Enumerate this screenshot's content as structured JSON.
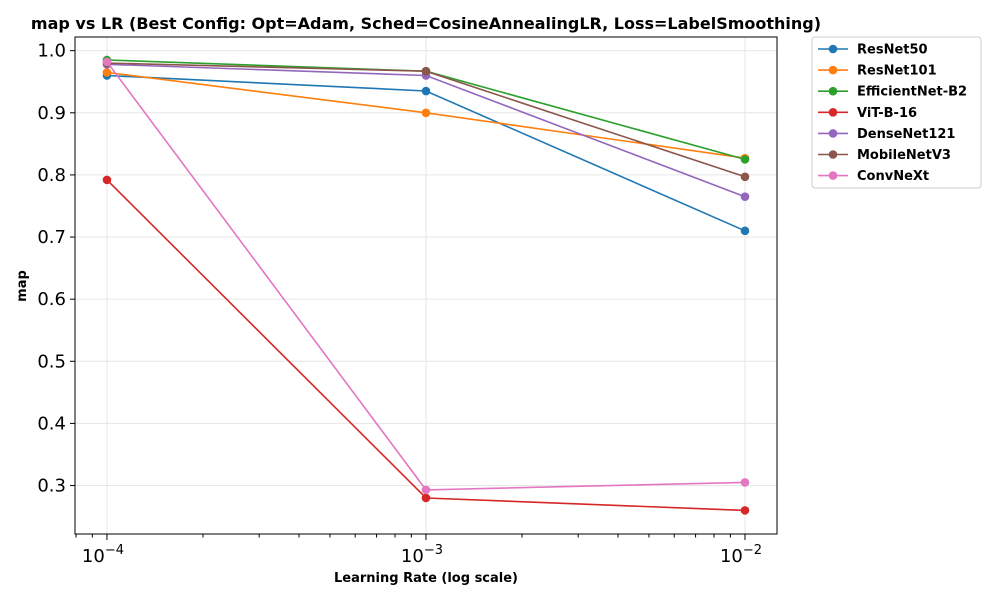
{
  "chart_data": {
    "type": "line",
    "title": "map vs LR (Best Config: Opt=Adam, Sched=CosineAnnealingLR, Loss=LabelSmoothing)",
    "xlabel": "Learning Rate (log scale)",
    "ylabel": "map",
    "x": [
      0.0001,
      0.001,
      0.01
    ],
    "x_ticks": [
      {
        "value": 0.0001,
        "base": "10",
        "exp": "−4"
      },
      {
        "value": 0.001,
        "base": "10",
        "exp": "−3"
      },
      {
        "value": 0.01,
        "base": "10",
        "exp": "−2"
      }
    ],
    "xscale": "log",
    "xlim": [
      7.94e-05,
      0.0126
    ],
    "ylim": [
      0.222,
      1.022
    ],
    "y_ticks": [
      "0.3",
      "0.4",
      "0.5",
      "0.6",
      "0.7",
      "0.8",
      "0.9",
      "1.0"
    ],
    "grid": true,
    "legend_position": "outside-top-right",
    "series": [
      {
        "name": "ResNet50",
        "color": "#1f77b4",
        "values": [
          0.96,
          0.935,
          0.71
        ]
      },
      {
        "name": "ResNet101",
        "color": "#ff7f0e",
        "values": [
          0.965,
          0.9,
          0.827
        ]
      },
      {
        "name": "EfficientNet-B2",
        "color": "#2ca02c",
        "values": [
          0.985,
          0.967,
          0.825
        ]
      },
      {
        "name": "ViT-B-16",
        "color": "#d62728",
        "values": [
          0.792,
          0.28,
          0.26
        ]
      },
      {
        "name": "DenseNet121",
        "color": "#9467bd",
        "values": [
          0.978,
          0.96,
          0.765
        ]
      },
      {
        "name": "MobileNetV3",
        "color": "#8c564b",
        "values": [
          0.98,
          0.967,
          0.797
        ]
      },
      {
        "name": "ConvNeXt",
        "color": "#e377c2",
        "values": [
          0.982,
          0.293,
          0.305
        ]
      }
    ]
  }
}
